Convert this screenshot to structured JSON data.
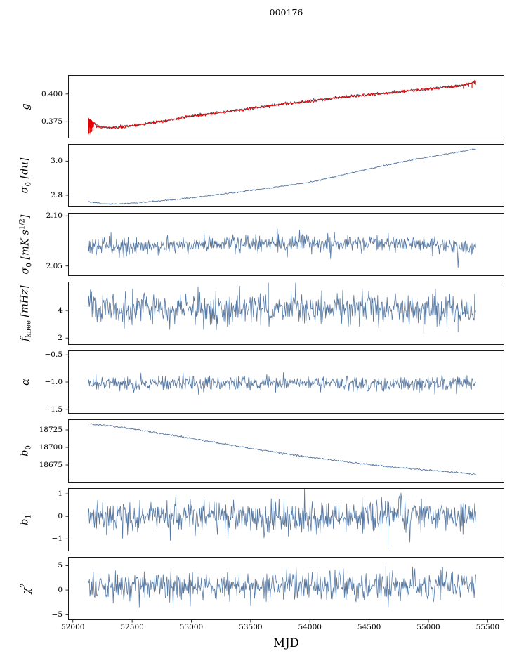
{
  "title": "000176",
  "xlabel": "MJD",
  "colors": {
    "line": "#5679a4",
    "line_dark": "#4a5a6d",
    "red": "#e60000",
    "axis": "#000000"
  },
  "x_axis": {
    "min": 51960,
    "max": 55640,
    "data_start": 52130,
    "data_end": 55400,
    "ticks": [
      52000,
      52500,
      53000,
      53500,
      54000,
      54500,
      55000,
      55500
    ],
    "tick_labels": [
      "52000",
      "52500",
      "53000",
      "53500",
      "54000",
      "54500",
      "55000",
      "55500"
    ]
  },
  "chart_data": [
    {
      "id": "g",
      "type": "line",
      "ylabel_html": "<i>g</i>",
      "ylim": [
        0.36,
        0.417
      ],
      "yticks": [
        0.4,
        0.375
      ],
      "ytick_labels": [
        "0.400",
        "0.375"
      ],
      "series": [
        {
          "name": "g-gain",
          "color_key": "line_dark",
          "width": 1.0,
          "n": 600,
          "noise": 0.0006,
          "anchors": [
            [
              52130,
              0.3785
            ],
            [
              52200,
              0.3715
            ],
            [
              52290,
              0.3695
            ],
            [
              52420,
              0.3705
            ],
            [
              52600,
              0.373
            ],
            [
              52800,
              0.3762
            ],
            [
              53000,
              0.3803
            ],
            [
              53200,
              0.3828
            ],
            [
              53450,
              0.3862
            ],
            [
              53700,
              0.3902
            ],
            [
              53950,
              0.3932
            ],
            [
              54200,
              0.3962
            ],
            [
              54450,
              0.3992
            ],
            [
              54700,
              0.4013
            ],
            [
              54950,
              0.4042
            ],
            [
              55150,
              0.4062
            ],
            [
              55300,
              0.4078
            ],
            [
              55400,
              0.4118
            ]
          ]
        },
        {
          "name": "g-gain-flagged",
          "color_key": "red",
          "width": 1.0,
          "n": 600,
          "noise": 0.0007,
          "anchors": [
            [
              52130,
              0.378
            ],
            [
              52200,
              0.3712
            ],
            [
              52290,
              0.3693
            ],
            [
              52420,
              0.3703
            ],
            [
              52600,
              0.3728
            ],
            [
              52800,
              0.376
            ],
            [
              53000,
              0.3801
            ],
            [
              53200,
              0.3826
            ],
            [
              53450,
              0.386
            ],
            [
              53700,
              0.39
            ],
            [
              53950,
              0.393
            ],
            [
              54200,
              0.396
            ],
            [
              54450,
              0.399
            ],
            [
              54700,
              0.4011
            ],
            [
              54950,
              0.404
            ],
            [
              55150,
              0.406
            ],
            [
              55300,
              0.4076
            ],
            [
              55400,
              0.4112
            ]
          ],
          "spikes": [
            [
              52133,
              0.364
            ],
            [
              52136,
              0.369
            ],
            [
              52139,
              0.3647
            ],
            [
              52143,
              0.37
            ],
            [
              52147,
              0.3655
            ],
            [
              52151,
              0.3638
            ],
            [
              52155,
              0.3695
            ],
            [
              52159,
              0.366
            ],
            [
              52164,
              0.37
            ],
            [
              52169,
              0.3672
            ],
            [
              52175,
              0.3705
            ],
            [
              55295,
              0.4049
            ],
            [
              55340,
              0.4066
            ],
            [
              55368,
              0.4055
            ],
            [
              55388,
              0.409
            ],
            [
              55398,
              0.4085
            ]
          ]
        }
      ]
    },
    {
      "id": "sigma0-du",
      "type": "line",
      "ylabel_html": "<i>σ</i><sub>0</sub> [du]",
      "ylim": [
        2.73,
        3.1
      ],
      "yticks": [
        3.0,
        2.8
      ],
      "ytick_labels": [
        "3.0",
        "2.8"
      ],
      "series": [
        {
          "name": "sigma0-du",
          "color_key": "line",
          "width": 0.9,
          "n": 600,
          "noise": 0.0018,
          "anchors": [
            [
              52130,
              2.762
            ],
            [
              52240,
              2.7515
            ],
            [
              52370,
              2.749
            ],
            [
              52570,
              2.757
            ],
            [
              52830,
              2.773
            ],
            [
              53110,
              2.794
            ],
            [
              53400,
              2.819
            ],
            [
              53700,
              2.846
            ],
            [
              54000,
              2.876
            ],
            [
              54300,
              2.923
            ],
            [
              54600,
              2.97
            ],
            [
              54900,
              3.013
            ],
            [
              55150,
              3.04
            ],
            [
              55400,
              3.071
            ]
          ]
        }
      ]
    },
    {
      "id": "sigma0-mK",
      "type": "line",
      "ylabel_html": "<i>σ</i><sub>0</sub> [mK s<sup>1/2</sup>]",
      "ylim": [
        2.04,
        2.103
      ],
      "yticks": [
        2.1,
        2.05
      ],
      "ytick_labels": [
        "2.10",
        "2.05"
      ],
      "series": [
        {
          "name": "sigma0-mK",
          "color_key": "line",
          "width": 0.8,
          "n": 700,
          "noise": 0.0045,
          "anchors": [
            [
              52130,
              2.0695
            ],
            [
              52600,
              2.069
            ],
            [
              53200,
              2.0735
            ],
            [
              53800,
              2.0725
            ],
            [
              54400,
              2.0735
            ],
            [
              55000,
              2.0715
            ],
            [
              55400,
              2.066
            ]
          ]
        }
      ]
    },
    {
      "id": "fknee",
      "type": "line",
      "ylabel_html": "<i>f</i><sub>knee</sub> [mHz]",
      "ylim": [
        1.5,
        6.1
      ],
      "yticks": [
        4,
        2
      ],
      "ytick_labels": [
        "4",
        "2"
      ],
      "series": [
        {
          "name": "fknee",
          "color_key": "line",
          "width": 0.8,
          "n": 700,
          "noise": 0.58,
          "anchors": [
            [
              52130,
              4.25
            ],
            [
              53000,
              4.15
            ],
            [
              54000,
              4.15
            ],
            [
              55000,
              4.05
            ],
            [
              55400,
              3.95
            ]
          ],
          "spikes": [
            [
              54960,
              2.3
            ],
            [
              55250,
              2.45
            ],
            [
              53650,
              6.0
            ]
          ]
        }
      ]
    },
    {
      "id": "alpha",
      "type": "line",
      "ylabel_html": "<i>α</i>",
      "ylim": [
        -1.58,
        -0.42
      ],
      "yticks": [
        -0.5,
        -1.0,
        -1.5
      ],
      "ytick_labels": [
        "−0.5",
        "−1.0",
        "−1.5"
      ],
      "series": [
        {
          "name": "alpha",
          "color_key": "line",
          "width": 0.8,
          "n": 700,
          "noise": 0.068,
          "anchors": [
            [
              52130,
              -1.02
            ],
            [
              55400,
              -1.02
            ]
          ]
        }
      ]
    },
    {
      "id": "b0",
      "type": "line",
      "ylabel_html": "<i>b</i><sub>0</sub>",
      "ylim": [
        18650,
        18740
      ],
      "yticks": [
        18725,
        18700,
        18675
      ],
      "ytick_labels": [
        "18725",
        "18700",
        "18675"
      ],
      "series": [
        {
          "name": "b0",
          "color_key": "line",
          "width": 0.9,
          "n": 600,
          "noise": 0.65,
          "anchors": [
            [
              52130,
              18733.5
            ],
            [
              52300,
              18731
            ],
            [
              52500,
              18726.5
            ],
            [
              52700,
              18721
            ],
            [
              52900,
              18715.5
            ],
            [
              53100,
              18710
            ],
            [
              53300,
              18704
            ],
            [
              53500,
              18698.5
            ],
            [
              53700,
              18693.5
            ],
            [
              53900,
              18688.5
            ],
            [
              54100,
              18684
            ],
            [
              54300,
              18679.5
            ],
            [
              54500,
              18675.5
            ],
            [
              54700,
              18672
            ],
            [
              54900,
              18669
            ],
            [
              55100,
              18666
            ],
            [
              55250,
              18664
            ],
            [
              55400,
              18661.5
            ]
          ]
        }
      ]
    },
    {
      "id": "b1",
      "type": "line",
      "ylabel_html": "<i>b</i><sub>1</sub>",
      "ylim": [
        -1.55,
        1.25
      ],
      "yticks": [
        1,
        0,
        -1
      ],
      "ytick_labels": [
        "1",
        "0",
        "−1"
      ],
      "series": [
        {
          "name": "b1",
          "color_key": "line",
          "width": 0.8,
          "n": 700,
          "noise": 0.36,
          "anchors": [
            [
              52130,
              0.0
            ],
            [
              55400,
              0.0
            ]
          ],
          "spikes": [
            [
              54660,
              -1.32
            ]
          ]
        }
      ]
    },
    {
      "id": "chi2",
      "type": "line",
      "ylabel_html": "<i>χ</i><sup>2</sup>",
      "ylim": [
        -6.2,
        6.8
      ],
      "yticks": [
        5,
        0,
        -5
      ],
      "ytick_labels": [
        "5",
        "0",
        "−5"
      ],
      "series": [
        {
          "name": "chi2",
          "color_key": "line",
          "width": 0.8,
          "n": 700,
          "noise": 1.5,
          "anchors": [
            [
              52130,
              0.8
            ],
            [
              55400,
              0.9
            ]
          ],
          "spikes": [
            [
              54640,
              4.9
            ],
            [
              55120,
              4.6
            ]
          ]
        }
      ]
    }
  ]
}
